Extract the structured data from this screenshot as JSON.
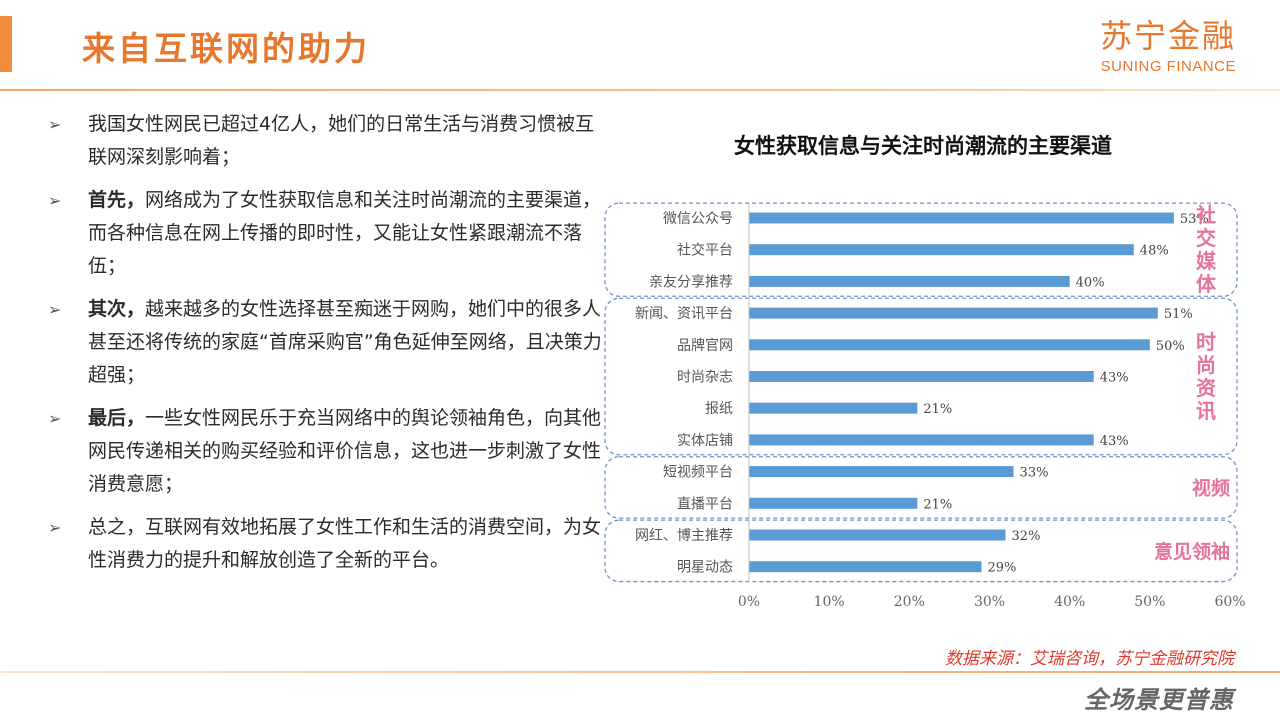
{
  "header": {
    "title": "来自互联网的助力",
    "brand_cn": "苏宁金融",
    "brand_en": "SUNING FINANCE"
  },
  "bullets": [
    {
      "lead": "",
      "text": "我国女性网民已超过4亿人，她们的日常生活与消费习惯被互联网深刻影响着；"
    },
    {
      "lead": "首先，",
      "text": "网络成为了女性获取信息和关注时尚潮流的主要渠道，而各种信息在网上传播的即时性，又能让女性紧跟潮流不落伍；"
    },
    {
      "lead": "其次，",
      "text": "越来越多的女性选择甚至痴迷于网购，她们中的很多人甚至还将传统的家庭“首席采购官”角色延伸至网络，且决策力超强；"
    },
    {
      "lead": "最后，",
      "text": "一些女性网民乐于充当网络中的舆论领袖角色，向其他网民传递相关的购买经验和评价信息，这也进一步刺激了女性消费意愿；"
    },
    {
      "lead": "",
      "text": "总之，互联网有效地拓展了女性工作和生活的消费空间，为女性消费力的提升和解放创造了全新的平台。"
    }
  ],
  "bullet_marker": "➢",
  "chart_data": {
    "type": "bar",
    "orientation": "horizontal",
    "title": "女性获取信息与关注时尚潮流的主要渠道",
    "categories": [
      "微信公众号",
      "社交平台",
      "亲友分享推荐",
      "新闻、资讯平台",
      "品牌官网",
      "时尚杂志",
      "报纸",
      "实体店铺",
      "短视频平台",
      "直播平台",
      "网红、博主推荐",
      "明星动态"
    ],
    "values": [
      53,
      48,
      40,
      51,
      50,
      43,
      21,
      43,
      33,
      21,
      32,
      29
    ],
    "value_labels": [
      "53%",
      "48%",
      "40%",
      "51%",
      "50%",
      "43%",
      "21%",
      "43%",
      "33%",
      "21%",
      "32%",
      "29%"
    ],
    "xlim": [
      0,
      60
    ],
    "xticks": [
      0,
      10,
      20,
      30,
      40,
      50,
      60
    ],
    "xtick_labels": [
      "0%",
      "10%",
      "20%",
      "30%",
      "40%",
      "50%",
      "60%"
    ],
    "xlabel": "",
    "ylabel": "",
    "grid": false,
    "bar_color": "#5b9bd5",
    "groups": [
      {
        "label": "社交媒体",
        "label_layout": "vertical",
        "from": 0,
        "to": 2
      },
      {
        "label": "时尚资讯",
        "label_layout": "vertical",
        "from": 3,
        "to": 7
      },
      {
        "label": "视频",
        "label_layout": "horizontal",
        "from": 8,
        "to": 9
      },
      {
        "label": "意见领袖",
        "label_layout": "horizontal",
        "from": 10,
        "to": 11
      }
    ],
    "group_label_color": "#e8739a",
    "group_border_color": "#6f93c7"
  },
  "source_text": "数据来源：艾瑞咨询，苏宁金融研究院",
  "slogan": "全场景更普惠"
}
